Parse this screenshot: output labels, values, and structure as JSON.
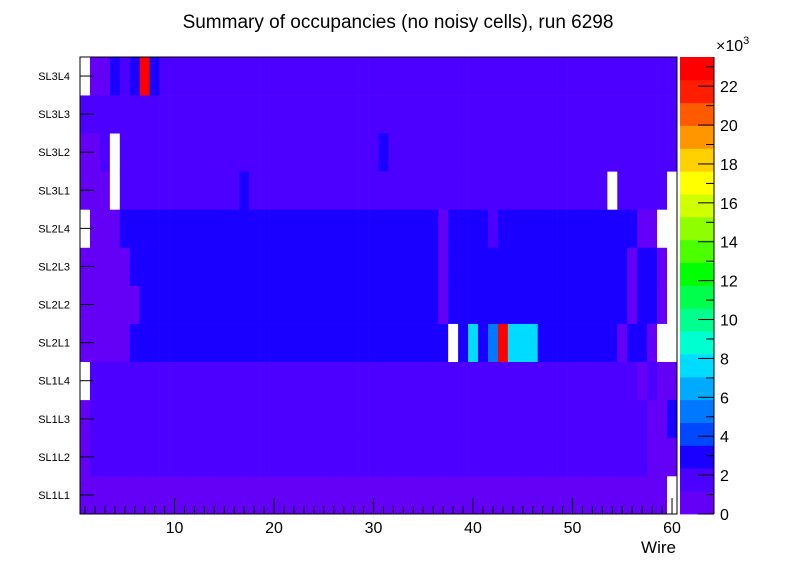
{
  "chart_data": {
    "type": "heatmap",
    "title": "Summary of occupancies (no noisy cells), run 6298",
    "xlabel": "Wire",
    "ylabel": "",
    "xlim": [
      0.5,
      60.5
    ],
    "x_ticks": [
      10,
      20,
      30,
      40,
      50,
      60
    ],
    "layers": [
      "SL1L1",
      "SL1L2",
      "SL1L3",
      "SL1L4",
      "SL2L1",
      "SL2L2",
      "SL2L3",
      "SL2L4",
      "SL3L1",
      "SL3L2",
      "SL3L3",
      "SL3L4"
    ],
    "z_range": [
      0,
      23.5
    ],
    "z_unit": "×10³",
    "z_ticks": [
      0,
      2,
      4,
      6,
      8,
      10,
      12,
      14,
      16,
      18,
      20,
      22
    ],
    "z_exponent": "3",
    "palette": [
      "#6300f5",
      "#4c00ff",
      "#1a00ff",
      "#0048ff",
      "#0078ff",
      "#00aaff",
      "#00dcff",
      "#00ffd0",
      "#00ff8f",
      "#00ff4c",
      "#00ff00",
      "#4cff00",
      "#8fff00",
      "#d0ff00",
      "#ffff00",
      "#ffd000",
      "#ff9600",
      "#ff5a00",
      "#ff1e00",
      "#ff0000"
    ],
    "values": {
      "SL1L1": "iiiiiiiiiiiiiiiiiiiiiiiiiiiiiiiiiiiiiiiiiiiiiiiiiiiiiiiiiiiw",
      "SL1L2": "ibbbbbbbbbbbbbbbbbbbbbbbbbbbbbbbbbbbbbbbbbbbbbbbbbbbbbbbbiii",
      "SL1L3": "ibbbbbbbbbbbbbbbbbbbbbbbbbbbbbbbbbbbbbbbbbbbbbbbbbbbbbbbbiic",
      "SL1L4": "wbbbbbbbbbbbbbbbbbbbbbbbbbbbbbbbbbbbbbbbbbbbbbbbbbbbbbbbibii",
      "SL2L1": "iiiiiccccccccccccccccccccccccccccccccwcxcaRxxxccccccccicc?ww",
      "SL2L2": "iiiiiicccccccccccccccccccccccccccccciccccccccccccccccccicc?ww",
      "SL2L3": "iiiiiccccccccccccccccccccccccccccccciccccccccccccccccccicc?ww",
      "SL2L4": "wiiicccccccccccccccccccccccccccccccciccccbcccccccccccccciiwww",
      "SL3L1": "iiiwbbbbbbbbbbbbcbbbbbbbbbbbbbbbbbbbbbbbbbbbbbbbbbbbbwbbbbbw",
      "SL3L2": "iibwbbbbbbbbbbbbbbbbbbbbbbbbbbcbbbbbbbbbbbbbbbbbbbbbbbbbbbbb",
      "SL3L3": "bbbbbbbbbbbbbbbbbbbbbbbbbbbbbbbbbbbbbbbbbbbbbbbbbbbbbbbbbbbb",
      "SL3L4": "wiicbcRcbbbbbbbbbbbbbbbbbbbbbbbbbbbbbbbbbbbbbbbbbbbbbbbbbbbb"
    },
    "value_key": {
      "w": 0,
      "i": 0.8,
      "b": 2.0,
      "c": 3.0,
      "a": 5.6,
      "x": 7.8,
      "R": 23,
      "?": 0.8
    }
  }
}
